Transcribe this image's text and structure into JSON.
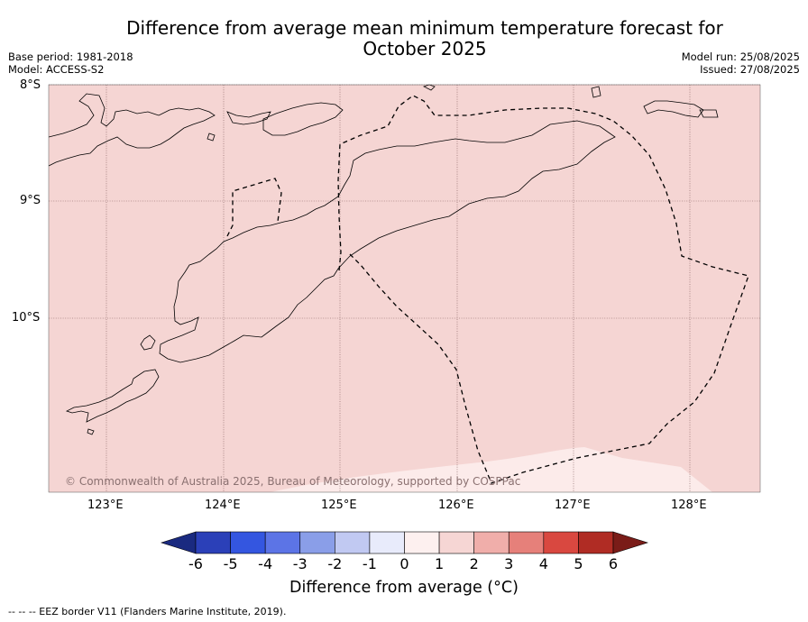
{
  "title": "Difference from average mean minimum temperature forecast for October 2025",
  "title_line1": "Difference from average mean minimum temperature forecast for",
  "title_line2": "October 2025",
  "base_period": "Base period: 1981-2018",
  "model": "Model: ACCESS-S2",
  "model_run": "Model run: 25/08/2025",
  "issued": "Issued: 27/08/2025",
  "lat_labels": [
    "8°S",
    "9°S",
    "10°S"
  ],
  "lon_labels": [
    "123°E",
    "124°E",
    "125°E",
    "126°E",
    "127°E",
    "128°E"
  ],
  "copyright": "© Commonwealth of Australia 2025, Bureau of Meteorology, supported by COSPPac",
  "colorbar": {
    "ticks": [
      "-6",
      "-5",
      "-4",
      "-3",
      "-2",
      "-1",
      "0",
      "1",
      "2",
      "3",
      "4",
      "5",
      "6"
    ],
    "colors": [
      "#1a2a80",
      "#2b40b8",
      "#3456e0",
      "#5c74e6",
      "#8a9ee8",
      "#c1c9f2",
      "#e8ebfb",
      "#fdf0ef",
      "#f6d6d4",
      "#f0aeaa",
      "#e6807a",
      "#d94840",
      "#b02c24",
      "#7a1c18"
    ],
    "label": "Difference from average (°C)",
    "label_prefix": "Difference from average (",
    "label_unit": "°C",
    "label_suffix": ")"
  },
  "footnote": "--  --  -- EEZ border V11 (Flanders Marine Institute, 2019).",
  "map_fill": {
    "main": "#f5d5d3",
    "lower_band": "#fcebea"
  }
}
